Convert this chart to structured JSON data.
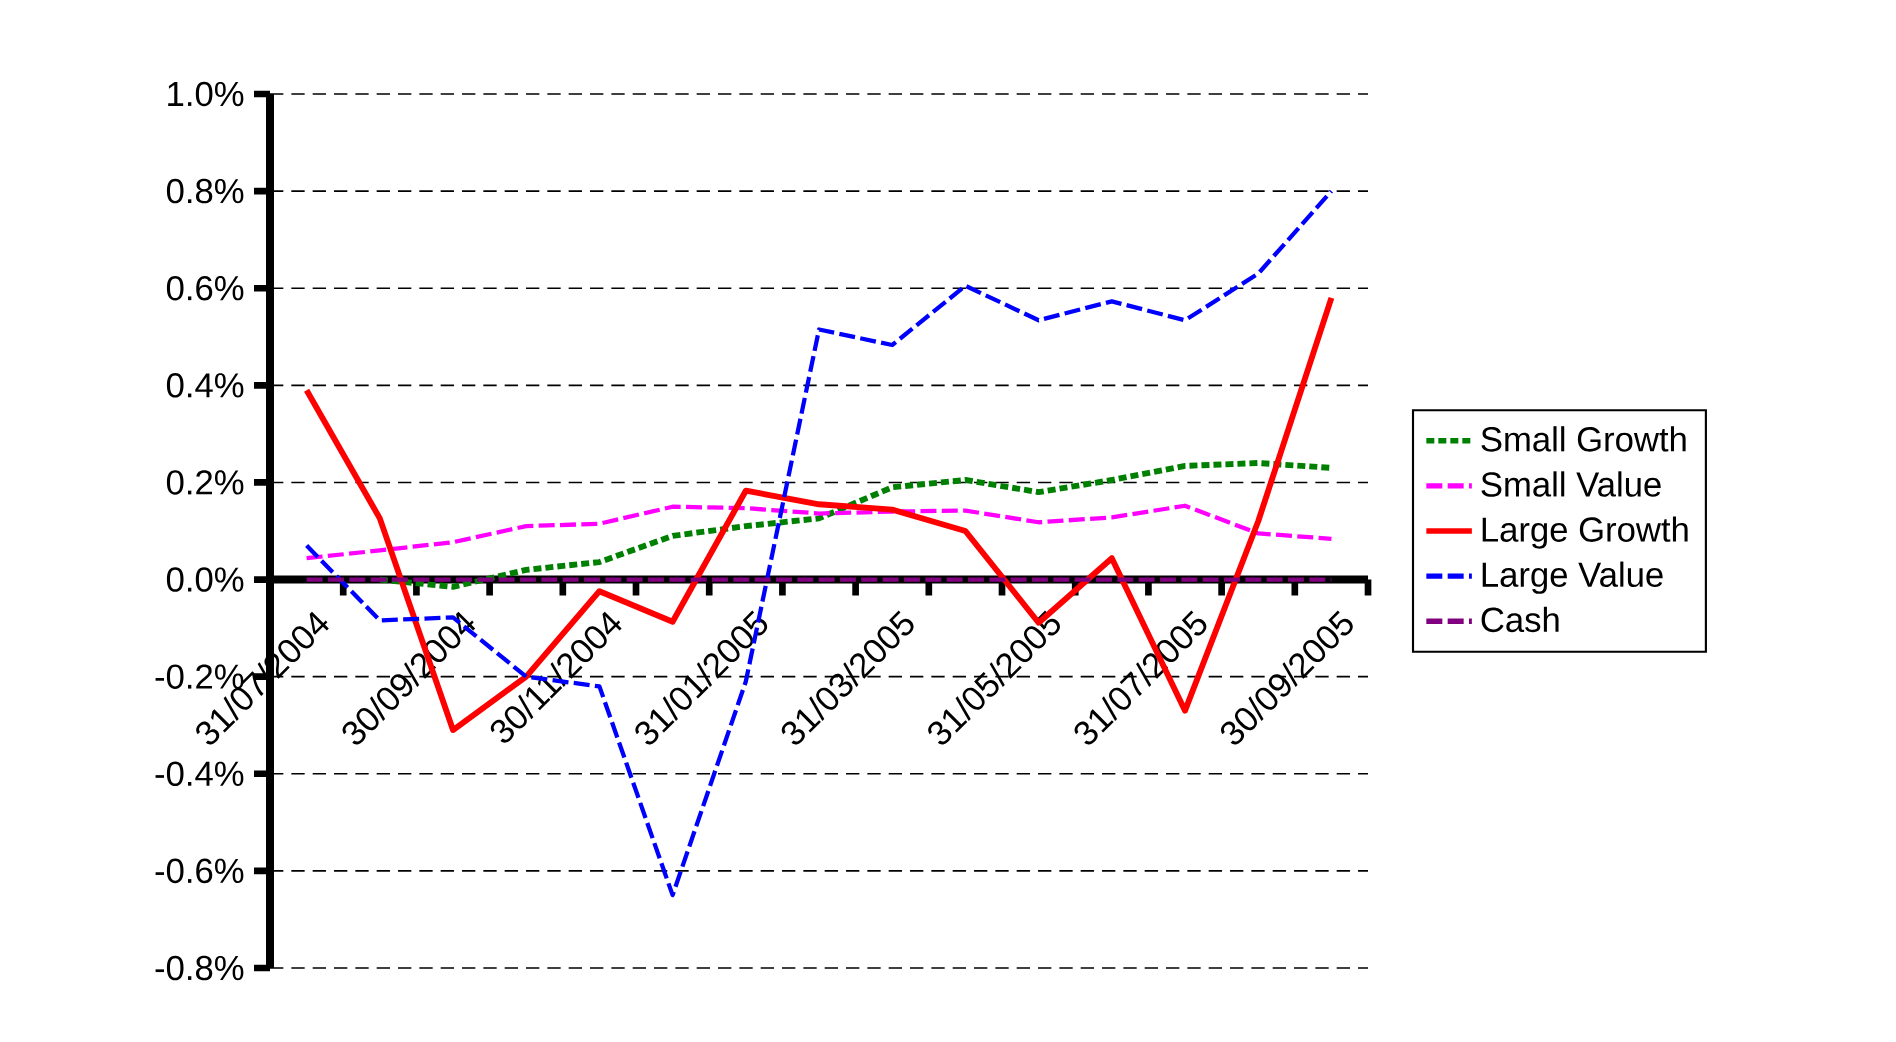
{
  "chart_data": {
    "type": "line",
    "categories": [
      "31/07/2004",
      null,
      "30/09/2004",
      null,
      "30/11/2004",
      null,
      "31/01/2005",
      null,
      "31/03/2005",
      null,
      "31/05/2005",
      null,
      "31/07/2005",
      null,
      "30/09/2005"
    ],
    "series": [
      {
        "name": "Small Growth",
        "color": "#008000",
        "line_style": "dotted",
        "values": [
          null,
          0.0,
          -0.015,
          0.02,
          0.036,
          0.09,
          0.11,
          0.126,
          0.19,
          0.205,
          0.18,
          0.205,
          0.234,
          0.24,
          0.23
        ]
      },
      {
        "name": "Small Value",
        "color": "#ff00ff",
        "line_style": "dashed",
        "values": [
          0.044,
          0.06,
          0.077,
          0.11,
          0.115,
          0.15,
          0.147,
          0.136,
          0.14,
          0.142,
          0.118,
          0.128,
          0.152,
          0.095,
          0.084
        ]
      },
      {
        "name": "Large Growth",
        "color": "#ff0000",
        "line_style": "solid",
        "values": [
          0.39,
          0.126,
          -0.31,
          -0.2,
          -0.024,
          -0.087,
          0.183,
          0.155,
          0.144,
          0.1,
          -0.089,
          0.044,
          -0.27,
          0.12,
          0.58
        ]
      },
      {
        "name": "Large Value",
        "color": "#0000ff",
        "line_style": "dashed",
        "values": [
          0.07,
          -0.084,
          -0.078,
          -0.2,
          -0.22,
          -0.65,
          -0.21,
          0.515,
          0.483,
          0.605,
          0.534,
          0.573,
          0.534,
          0.63,
          0.8
        ]
      },
      {
        "name": "Cash",
        "color": "#800080",
        "line_style": "dashed",
        "values": [
          0.0,
          0.0,
          0.0,
          0.0,
          0.0,
          0.0,
          0.0,
          0.0,
          0.0,
          0.0,
          0.0,
          0.0,
          0.0,
          0.0,
          0.0
        ]
      }
    ],
    "ylim": [
      -0.8,
      1.0
    ],
    "yticks": [
      {
        "value": -0.8,
        "label": "-0.8%"
      },
      {
        "value": -0.6,
        "label": "-0.6%"
      },
      {
        "value": -0.4,
        "label": "-0.4%"
      },
      {
        "value": -0.2,
        "label": "-0.2%"
      },
      {
        "value": 0.0,
        "label": "0.0%"
      },
      {
        "value": 0.2,
        "label": "0.2%"
      },
      {
        "value": 0.4,
        "label": "0.4%"
      },
      {
        "value": 0.6,
        "label": "0.6%"
      },
      {
        "value": 0.8,
        "label": "0.8%"
      },
      {
        "value": 1.0,
        "label": "1.0%"
      }
    ],
    "grid": "y",
    "legend": "right",
    "marker": "none"
  }
}
